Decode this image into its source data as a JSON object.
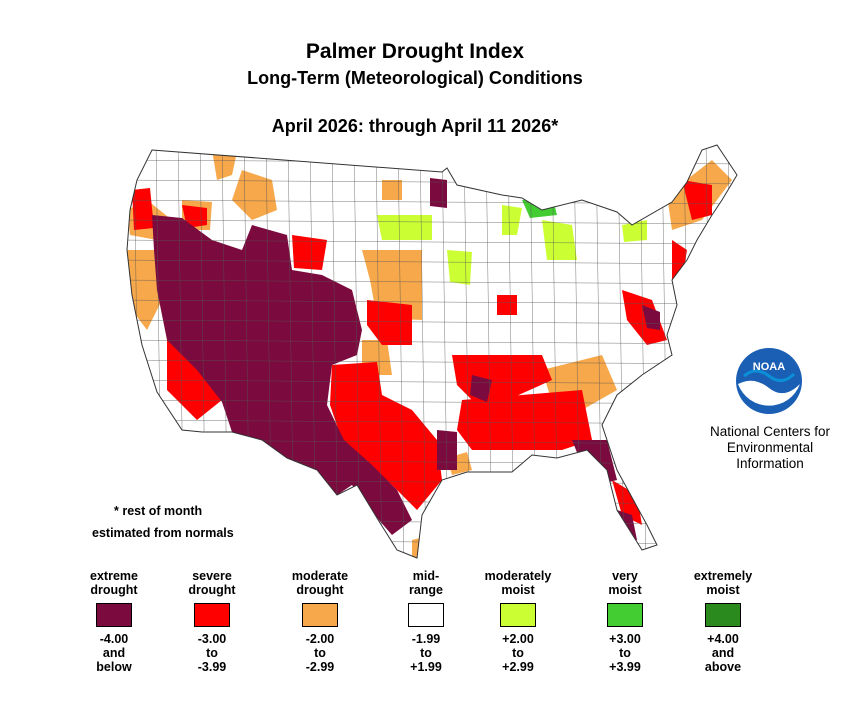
{
  "header": {
    "title": "Palmer Drought Index",
    "subtitle": "Long-Term (Meteorological) Conditions",
    "period": "April 2026: through April 11 2026*"
  },
  "note": {
    "line1": "* rest of month",
    "line2": "estimated from normals"
  },
  "credit": {
    "logo_text": "NOAA",
    "line1": "National Centers for",
    "line2": "Environmental",
    "line3": "Information"
  },
  "legend": [
    {
      "label1": "extreme",
      "label2": "drought",
      "range1": "-4.00",
      "range2": "and",
      "range3": "below",
      "color": "#7b0a3e"
    },
    {
      "label1": "severe",
      "label2": "drought",
      "range1": "-3.00",
      "range2": "to",
      "range3": "-3.99",
      "color": "#ff0000"
    },
    {
      "label1": "moderate",
      "label2": "drought",
      "range1": "-2.00",
      "range2": "to",
      "range3": "-2.99",
      "color": "#f7a84a"
    },
    {
      "label1": "mid-",
      "label2": "range",
      "range1": "-1.99",
      "range2": "to",
      "range3": "+1.99",
      "color": "#ffffff"
    },
    {
      "label1": "moderately",
      "label2": "moist",
      "range1": "+2.00",
      "range2": "to",
      "range3": "+2.99",
      "color": "#ccff33"
    },
    {
      "label1": "very",
      "label2": "moist",
      "range1": "+3.00",
      "range2": "to",
      "range3": "+3.99",
      "color": "#44cc33"
    },
    {
      "label1": "extremely",
      "label2": "moist",
      "range1": "+4.00",
      "range2": "and",
      "range3": "above",
      "color": "#2a8a1e"
    }
  ],
  "map_colors": {
    "extreme": "#7b0a3e",
    "severe": "#ff0000",
    "moderate": "#f7a84a",
    "mid": "#ffffff",
    "moist": "#ccff33",
    "very_moist": "#44cc33",
    "border": "#555555"
  }
}
